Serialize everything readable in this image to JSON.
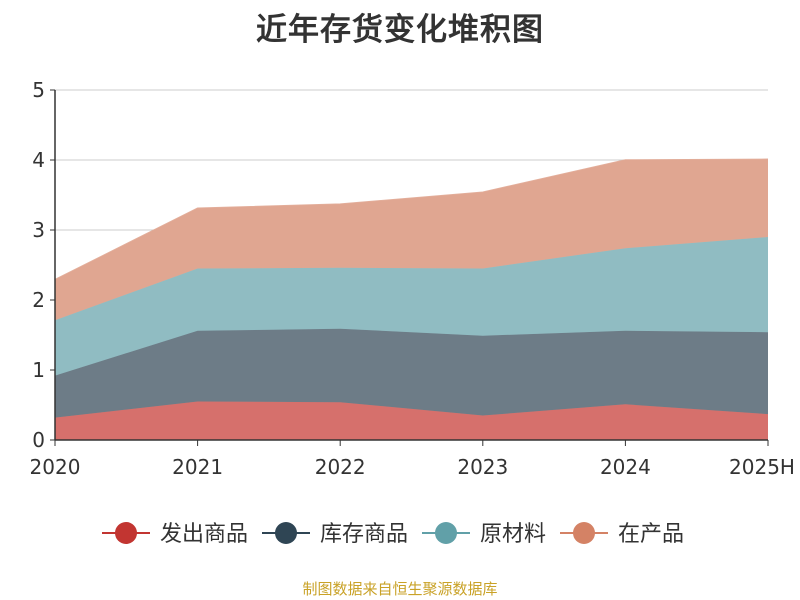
{
  "chart_data": {
    "type": "area",
    "stacked": true,
    "title": "近年存货变化堆积图",
    "ylabel": "",
    "xlabel": "",
    "categories": [
      "2020",
      "2021",
      "2022",
      "2023",
      "2024",
      "2025H"
    ],
    "ylim": [
      0,
      5
    ],
    "yticks": [
      0,
      1,
      2,
      3,
      4,
      5
    ],
    "grid": true,
    "legend_position": "bottom",
    "series": [
      {
        "name": "发出商品",
        "color": "#c23531",
        "fill": "#d6706c",
        "values": [
          0.32,
          0.55,
          0.54,
          0.35,
          0.51,
          0.37
        ]
      },
      {
        "name": "库存商品",
        "color": "#2f4554",
        "fill": "#6d7c87",
        "values": [
          0.6,
          1.01,
          1.05,
          1.14,
          1.05,
          1.17
        ]
      },
      {
        "name": "原材料",
        "color": "#61a0a8",
        "fill": "#90bcc2",
        "values": [
          0.79,
          0.89,
          0.87,
          0.96,
          1.18,
          1.36
        ]
      },
      {
        "name": "在产品",
        "color": "#d48265",
        "fill": "#e0a691",
        "values": [
          0.58,
          0.86,
          0.91,
          1.09,
          1.26,
          1.11
        ]
      }
    ]
  },
  "source_note": "制图数据来自恒生聚源数据库"
}
